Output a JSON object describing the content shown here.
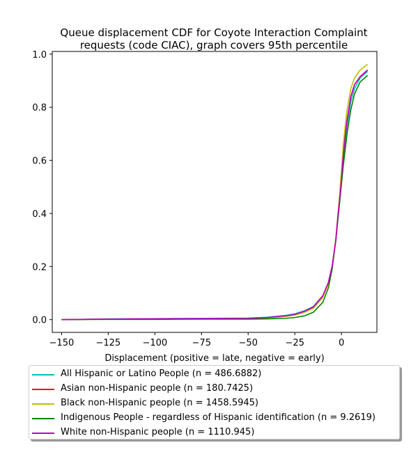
{
  "chart_data": {
    "type": "line",
    "title_lines": [
      "Queue displacement CDF for Coyote Interaction Complaint",
      "requests (code CIAC), graph covers 95th percentile"
    ],
    "xlabel": "Displacement (positive = late, negative = early)",
    "ylabel": "",
    "xlim": [
      -155,
      19
    ],
    "ylim": [
      -0.048,
      1.01
    ],
    "xticks": [
      -150,
      -125,
      -100,
      -75,
      -50,
      -25,
      0
    ],
    "xtick_labels": [
      "−150",
      "−125",
      "−100",
      "−75",
      "−50",
      "−25",
      "0"
    ],
    "yticks": [
      0.0,
      0.2,
      0.4,
      0.6,
      0.8,
      1.0
    ],
    "ytick_labels": [
      "0.0",
      "0.2",
      "0.4",
      "0.6",
      "0.8",
      "1.0"
    ],
    "grid": false,
    "legend_position": "below",
    "series": [
      {
        "name": "All Hispanic or Latino People (n = 486.6882)",
        "color": "#00bfbf",
        "x": [
          -150,
          -125,
          -100,
          -75,
          -50,
          -40,
          -30,
          -25,
          -20,
          -15,
          -10,
          -7,
          -5,
          -3,
          -2,
          -1,
          0,
          1,
          2,
          3,
          5,
          7,
          10,
          14
        ],
        "y": [
          0.0,
          0.003,
          0.004,
          0.005,
          0.006,
          0.009,
          0.016,
          0.022,
          0.033,
          0.05,
          0.09,
          0.14,
          0.2,
          0.3,
          0.37,
          0.44,
          0.52,
          0.6,
          0.67,
          0.73,
          0.82,
          0.87,
          0.91,
          0.935
        ]
      },
      {
        "name": "Asian non-Hispanic people (n = 180.7425)",
        "color": "#ff0000",
        "x": [
          -150,
          -125,
          -100,
          -75,
          -50,
          -40,
          -30,
          -25,
          -20,
          -15,
          -10,
          -7,
          -5,
          -3,
          -2,
          -1,
          0,
          1,
          2,
          3,
          5,
          7,
          10,
          14
        ],
        "y": [
          0.0,
          0.002,
          0.003,
          0.003,
          0.004,
          0.007,
          0.013,
          0.019,
          0.03,
          0.047,
          0.088,
          0.14,
          0.2,
          0.3,
          0.38,
          0.45,
          0.53,
          0.62,
          0.69,
          0.75,
          0.84,
          0.885,
          0.915,
          0.94
        ]
      },
      {
        "name": "Black non-Hispanic people (n = 1458.5945)",
        "color": "#bfbf00",
        "x": [
          -150,
          -125,
          -100,
          -75,
          -50,
          -40,
          -30,
          -25,
          -20,
          -15,
          -10,
          -7,
          -5,
          -3,
          -2,
          -1,
          0,
          1,
          2,
          3,
          5,
          7,
          10,
          14
        ],
        "y": [
          0.0,
          0.002,
          0.003,
          0.003,
          0.004,
          0.006,
          0.012,
          0.017,
          0.027,
          0.043,
          0.083,
          0.135,
          0.2,
          0.31,
          0.39,
          0.47,
          0.56,
          0.66,
          0.73,
          0.79,
          0.87,
          0.91,
          0.94,
          0.962
        ]
      },
      {
        "name": "Indigenous People - regardless of Hispanic identification (n = 9.2619)",
        "color": "#008000",
        "x": [
          -150,
          -125,
          -100,
          -75,
          -50,
          -40,
          -30,
          -25,
          -20,
          -15,
          -10,
          -7,
          -5,
          -3,
          -2,
          -1,
          0,
          1,
          2,
          3,
          5,
          7,
          10,
          14
        ],
        "y": [
          0.0,
          0.001,
          0.001,
          0.002,
          0.002,
          0.003,
          0.005,
          0.008,
          0.014,
          0.028,
          0.065,
          0.12,
          0.19,
          0.3,
          0.37,
          0.44,
          0.51,
          0.58,
          0.64,
          0.7,
          0.79,
          0.85,
          0.895,
          0.92
        ]
      },
      {
        "name": "White non-Hispanic people (n = 1110.945)",
        "color": "#bf00bf",
        "x": [
          -150,
          -125,
          -100,
          -75,
          -50,
          -40,
          -30,
          -25,
          -20,
          -15,
          -10,
          -7,
          -5,
          -3,
          -2,
          -1,
          0,
          1,
          2,
          3,
          5,
          7,
          10,
          14
        ],
        "y": [
          0.0,
          0.002,
          0.003,
          0.004,
          0.005,
          0.008,
          0.014,
          0.02,
          0.031,
          0.048,
          0.09,
          0.14,
          0.2,
          0.3,
          0.38,
          0.45,
          0.53,
          0.62,
          0.69,
          0.75,
          0.84,
          0.885,
          0.915,
          0.94
        ]
      }
    ]
  }
}
